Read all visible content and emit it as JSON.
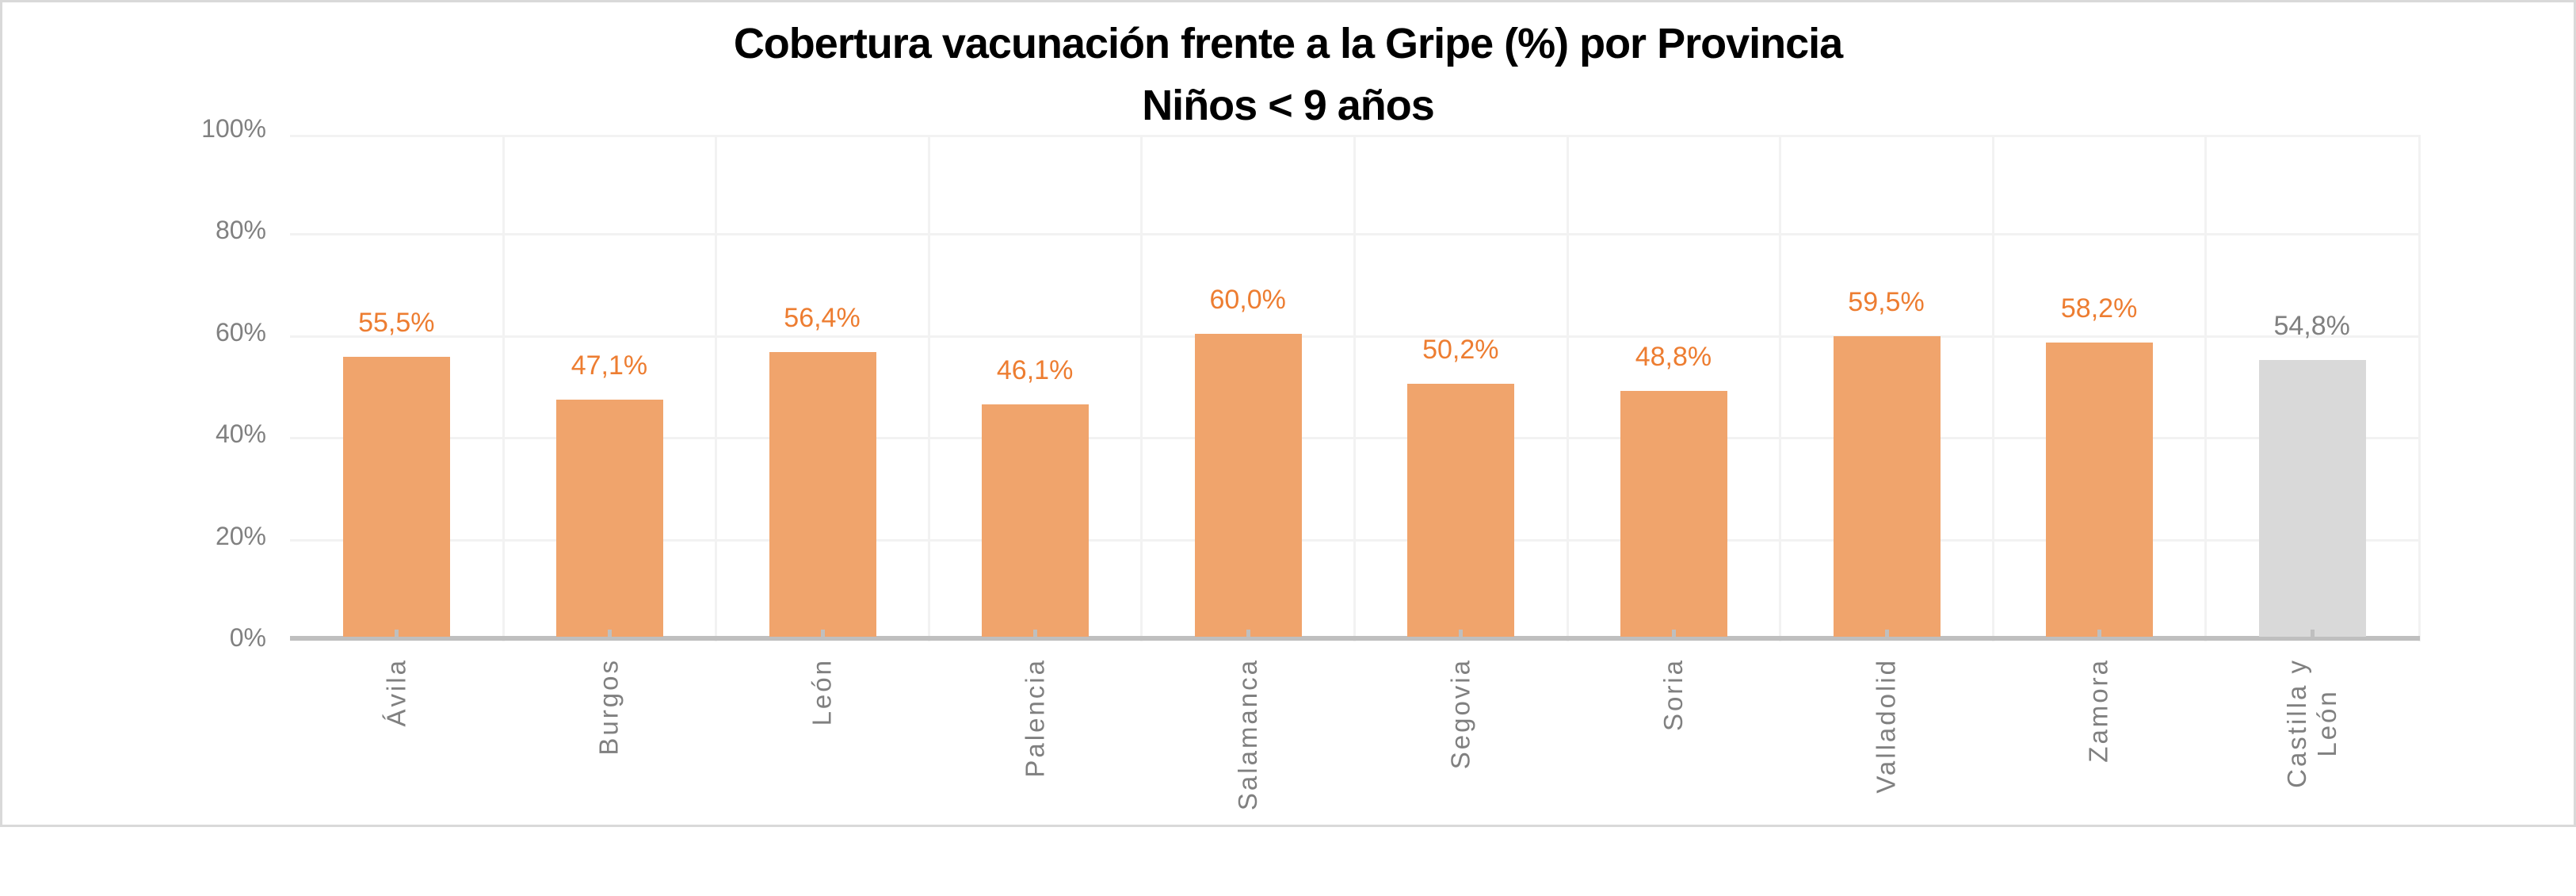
{
  "chart_data": {
    "type": "bar",
    "title": "Cobertura vacunación frente a la Gripe (%) por Provincia",
    "subtitle": "Niños < 9 años",
    "xlabel": "",
    "ylabel": "",
    "ylim": [
      0,
      100
    ],
    "yticks": [
      "0%",
      "20%",
      "40%",
      "60%",
      "80%",
      "100%"
    ],
    "grid": true,
    "legend": "none",
    "categories": [
      "Ávila",
      "Burgos",
      "León",
      "Palencia",
      "Salamanca",
      "Segovia",
      "Soria",
      "Valladolid",
      "Zamora",
      "Castilla y\nLeón"
    ],
    "values": [
      55.5,
      47.1,
      56.4,
      46.1,
      60.0,
      50.2,
      48.8,
      59.5,
      58.2,
      54.8
    ],
    "data_labels": [
      "55,5%",
      "47,1%",
      "56,4%",
      "46,1%",
      "60,0%",
      "50,2%",
      "48,8%",
      "59,5%",
      "58,2%",
      "54,8%"
    ],
    "colors": {
      "province_bar": "#f0a46c",
      "province_label": "#ed7d31",
      "total_bar": "#d9d9d9",
      "total_label": "#808080",
      "axis": "#bfbfbf",
      "grid": "#f2f2f2",
      "tick_text": "#808080"
    }
  }
}
